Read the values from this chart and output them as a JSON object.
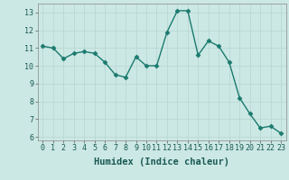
{
  "x": [
    0,
    1,
    2,
    3,
    4,
    5,
    6,
    7,
    8,
    9,
    10,
    11,
    12,
    13,
    14,
    15,
    16,
    17,
    18,
    19,
    20,
    21,
    22,
    23
  ],
  "y": [
    11.1,
    11.0,
    10.4,
    10.7,
    10.8,
    10.7,
    10.2,
    9.5,
    9.35,
    10.5,
    10.0,
    10.0,
    11.9,
    13.1,
    13.1,
    10.6,
    11.4,
    11.1,
    10.2,
    8.2,
    7.3,
    6.5,
    6.6,
    6.2
  ],
  "line_color": "#1a7a6e",
  "marker": "D",
  "marker_size": 2.5,
  "bg_color": "#cce8e4",
  "grid_color": "#b8d8d4",
  "xlabel": "Humidex (Indice chaleur)",
  "xlabel_fontsize": 7.5,
  "ylim": [
    5.8,
    13.5
  ],
  "xlim": [
    -0.5,
    23.5
  ],
  "yticks": [
    6,
    7,
    8,
    9,
    10,
    11,
    12,
    13
  ],
  "xticks": [
    0,
    1,
    2,
    3,
    4,
    5,
    6,
    7,
    8,
    9,
    10,
    11,
    12,
    13,
    14,
    15,
    16,
    17,
    18,
    19,
    20,
    21,
    22,
    23
  ],
  "tick_fontsize": 6,
  "line_width": 1.0
}
